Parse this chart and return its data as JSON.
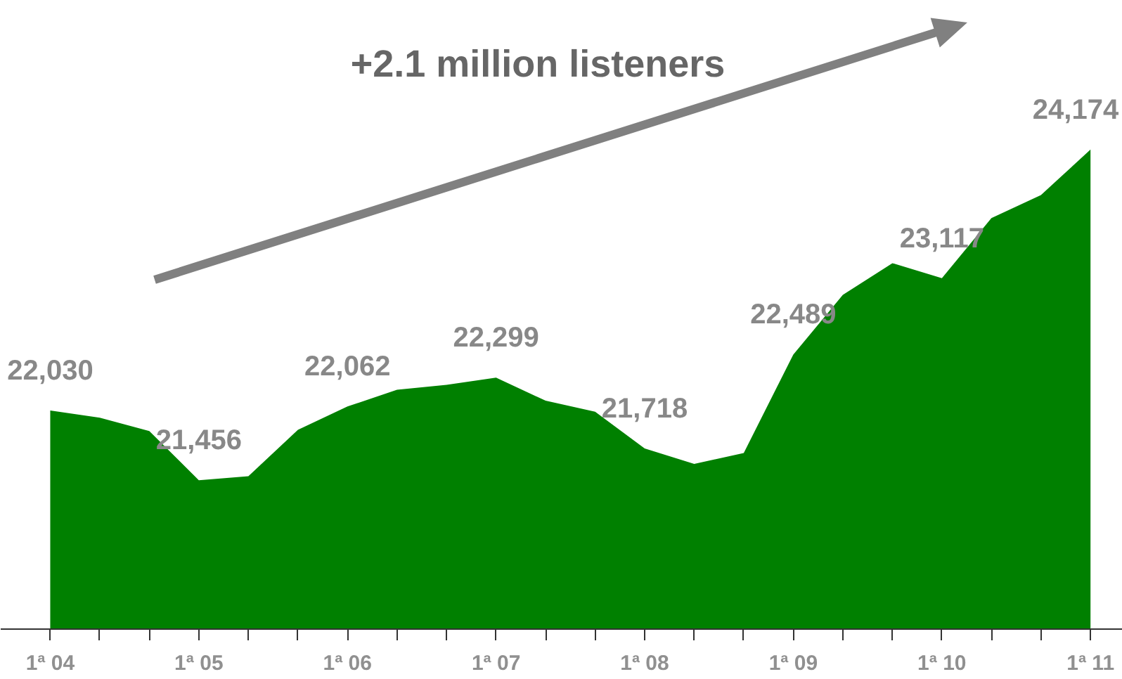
{
  "chart_data": {
    "type": "area",
    "categories": [
      "1ª 04",
      null,
      null,
      "1ª 05",
      null,
      null,
      "1ª 06",
      null,
      null,
      "1ª 07",
      null,
      null,
      "1ª 08",
      null,
      null,
      "1ª 09",
      null,
      null,
      "1ª 10",
      null,
      null,
      "1ª 11"
    ],
    "values": [
      22030,
      21970,
      21860,
      21456,
      21490,
      21870,
      22062,
      22200,
      22240,
      22299,
      22110,
      22020,
      21718,
      21590,
      21680,
      22489,
      22980,
      23240,
      23117,
      23610,
      23800,
      24174
    ],
    "value_labels": [
      "22,030",
      null,
      null,
      "21,456",
      null,
      null,
      "22,062",
      null,
      null,
      "22,299",
      null,
      null,
      "21,718",
      null,
      null,
      "22,489",
      null,
      null,
      "23,117",
      null,
      null,
      "24,174"
    ],
    "color": "#008000",
    "tick_labels": "x",
    "annotations": [
      "+2.1 million listeners"
    ]
  }
}
